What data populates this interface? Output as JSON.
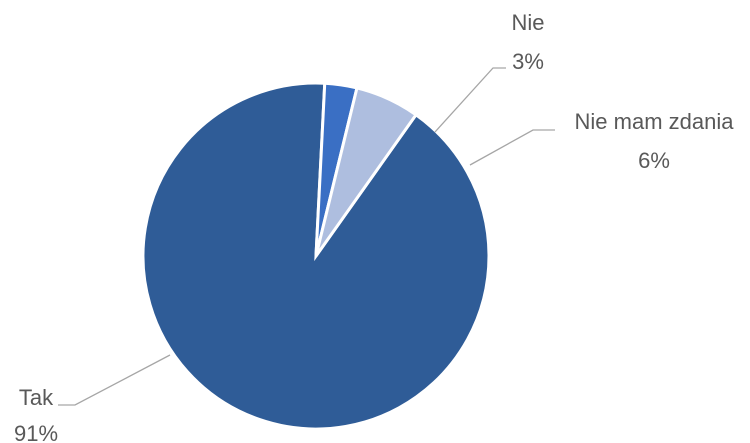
{
  "chart_data": {
    "type": "pie",
    "title": "",
    "slices": [
      {
        "label": "Tak",
        "value": 91,
        "value_label": "91%",
        "color": "#2f5c97"
      },
      {
        "label": "Nie",
        "value": 3,
        "value_label": "3%",
        "color": "#3a6fc4"
      },
      {
        "label": "Nie mam zdania",
        "value": 6,
        "value_label": "6%",
        "color": "#aebedf"
      }
    ],
    "legend": "none",
    "data_labels": "outside with leader lines"
  }
}
